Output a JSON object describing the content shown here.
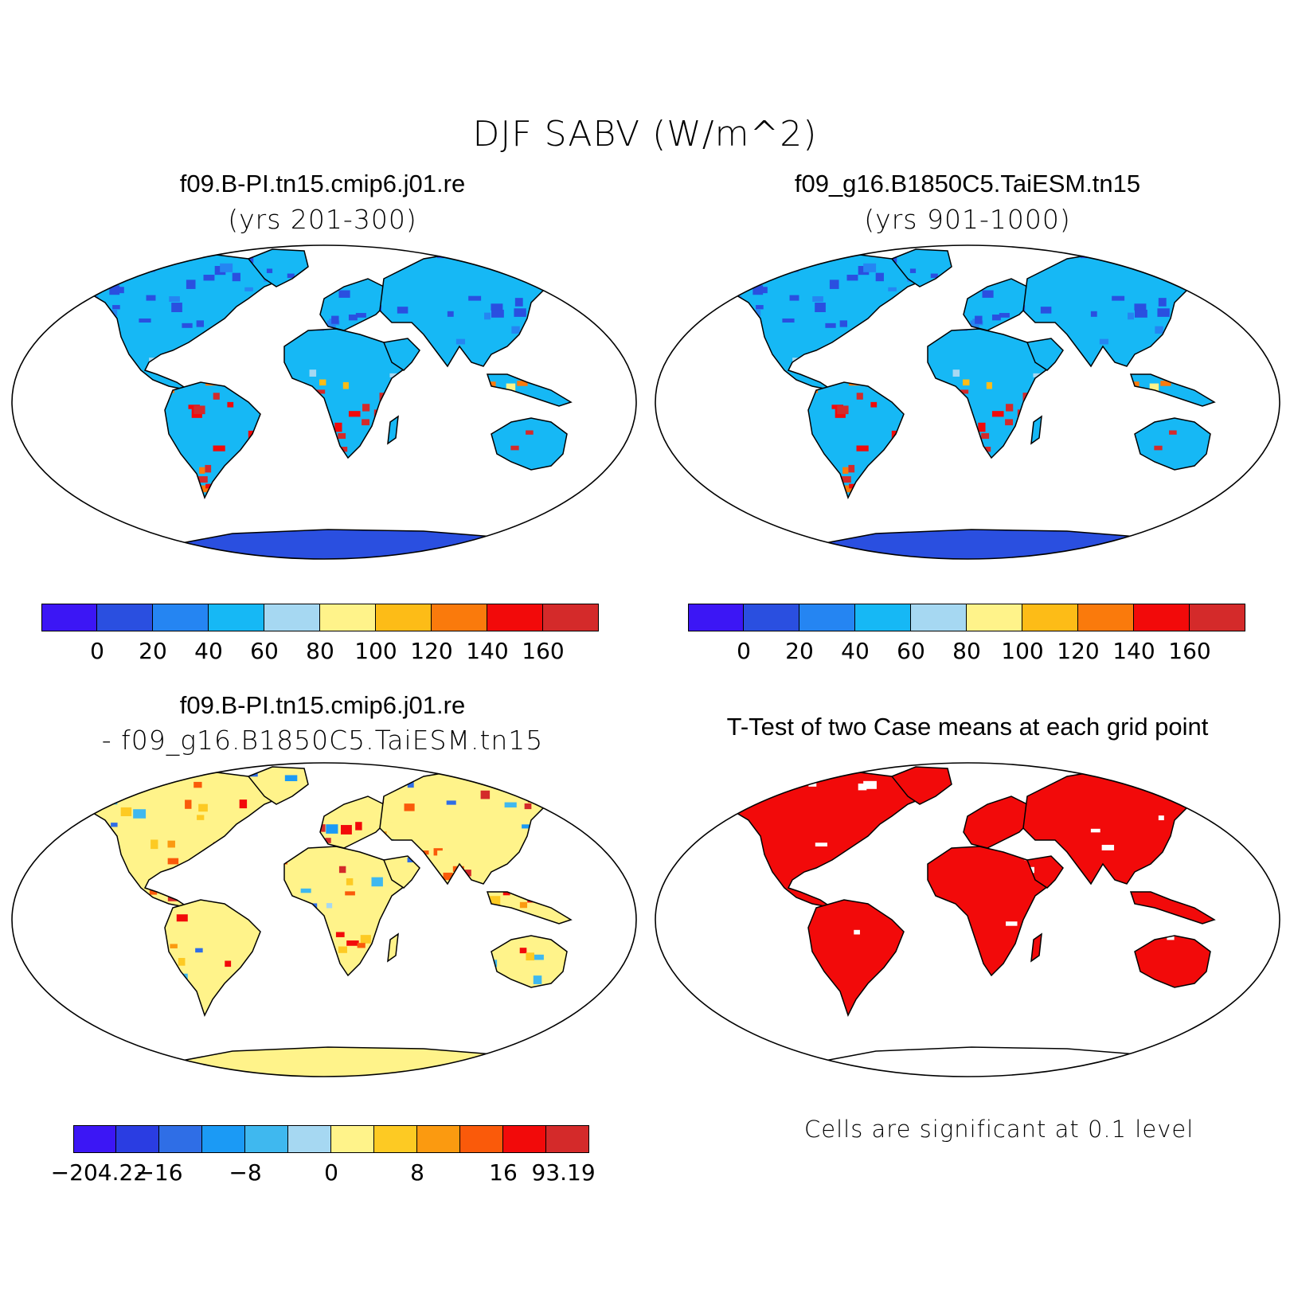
{
  "figure": {
    "title": "DJF SABV (W/m^2)"
  },
  "panels": {
    "case1": {
      "title": "f09.B-PI.tn15.cmip6.j01.re",
      "subtitle": "(yrs 201-300)"
    },
    "case2": {
      "title": "f09_g16.B1850C5.TaiESM.tn15",
      "subtitle": "(yrs 901-1000)"
    },
    "diff": {
      "title": "f09.B-PI.tn15.cmip6.j01.re",
      "subtitle": "- f09_g16.B1850C5.TaiESM.tn15"
    },
    "ttest": {
      "title": "T-Test of two Case means at each grid point",
      "note": "Cells are significant at 0.1 level"
    }
  },
  "colorbars": {
    "absolute": {
      "colors": [
        "#3c16f5",
        "#2a4fe0",
        "#2585f2",
        "#16b8f5",
        "#a6d8f2",
        "#fff38a",
        "#fdbc17",
        "#fa7a0c",
        "#f20a0a",
        "#d42a2a"
      ],
      "labels": [
        "0",
        "20",
        "40",
        "60",
        "80",
        "100",
        "120",
        "140",
        "160"
      ]
    },
    "difference": {
      "colors": [
        "#3c16f5",
        "#2a3de2",
        "#2f6ee6",
        "#1b9af5",
        "#3fb8ef",
        "#a6d8f2",
        "#fff38a",
        "#fdca23",
        "#fb9a10",
        "#fa5a0a",
        "#f20a0a",
        "#d42a2a"
      ],
      "labels": [
        "-204.22",
        "-16",
        "-8",
        "0",
        "8",
        "16",
        "93.19"
      ]
    }
  },
  "significance_color": "#f20a0a"
}
